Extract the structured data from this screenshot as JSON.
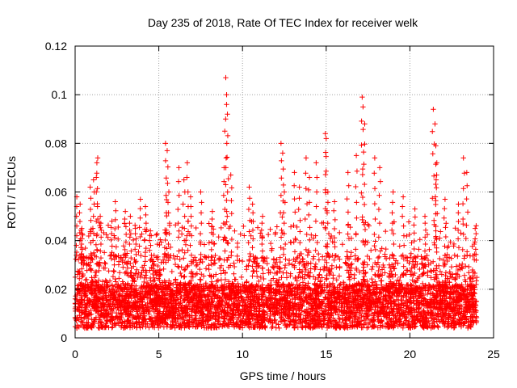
{
  "chart_data": {
    "type": "scatter",
    "title": "Day 235 of 2018, Rate Of TEC Index for receiver welk",
    "xlabel": "GPS time / hours",
    "ylabel": "ROTI / TECUs",
    "xlim": [
      0,
      25
    ],
    "ylim": [
      0,
      0.12
    ],
    "x_ticks": [
      "0",
      "5",
      "10",
      "15",
      "20",
      "25"
    ],
    "y_ticks": [
      "0",
      "0.02",
      "0.04",
      "0.06",
      "0.08",
      "0.1",
      "0.12"
    ],
    "grid": true,
    "marker": "+",
    "marker_color": "#ff0000",
    "data_extent_x": [
      0,
      24
    ],
    "series": [
      {
        "x": [
          0.1,
          0.3,
          0.4,
          0.9,
          1.1,
          1.3,
          1.35,
          1.5,
          2.2,
          2.4,
          3.0,
          3.3,
          3.6,
          3.9,
          4.2,
          4.5,
          5.4,
          5.5,
          5.6,
          6.2,
          6.5,
          6.7,
          6.9,
          7.5,
          8.2,
          8.9,
          9.0,
          9.05,
          9.1,
          9.3,
          10.4,
          10.6,
          11.2,
          12.3,
          12.4,
          12.5,
          13.1,
          13.4,
          13.8,
          14.0,
          14.4,
          14.95,
          15.0,
          15.1,
          15.5,
          16.3,
          16.8,
          17.15,
          17.2,
          17.3,
          17.9,
          18.2,
          19.0,
          19.6,
          20.3,
          20.9,
          21.4,
          21.5,
          21.55,
          21.6,
          22.1,
          22.9,
          23.2,
          23.4,
          23.9
        ],
        "y": [
          0.058,
          0.055,
          0.045,
          0.062,
          0.065,
          0.072,
          0.074,
          0.05,
          0.048,
          0.056,
          0.052,
          0.05,
          0.045,
          0.057,
          0.054,
          0.044,
          0.08,
          0.077,
          0.06,
          0.07,
          0.065,
          0.072,
          0.058,
          0.06,
          0.052,
          0.07,
          0.107,
          0.1,
          0.092,
          0.067,
          0.062,
          0.055,
          0.05,
          0.08,
          0.076,
          0.06,
          0.068,
          0.062,
          0.074,
          0.066,
          0.072,
          0.084,
          0.082,
          0.06,
          0.056,
          0.068,
          0.075,
          0.099,
          0.095,
          0.088,
          0.074,
          0.07,
          0.06,
          0.058,
          0.053,
          0.05,
          0.094,
          0.088,
          0.079,
          0.067,
          0.057,
          0.055,
          0.074,
          0.068,
          0.045
        ]
      }
    ]
  }
}
